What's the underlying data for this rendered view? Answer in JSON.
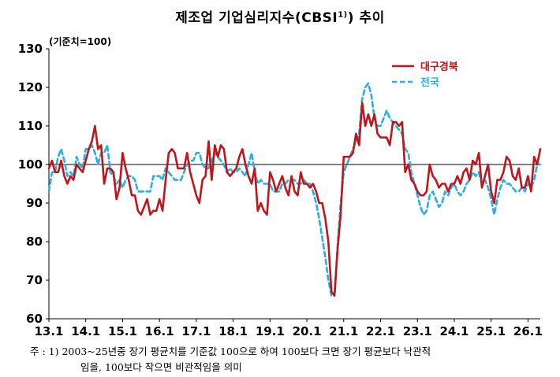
{
  "title": "제조업 기업심리지수(CBSI",
  "title_sup": "1)",
  "title_tail": ") 추이",
  "unit": "(기준치=100)",
  "footnote": {
    "line1": "주 : 1) 2003~25년중 장기 평균치를 기준값 100으로 하여 100보다 크면 장기 평균보다 낙관적",
    "line2": "임을, 100보다 작으면 비관적임을 의미"
  },
  "colors": {
    "daegu": "#c0151b",
    "national": "#2aaee6",
    "baseline": "#000000"
  },
  "chart_data": {
    "type": "line",
    "xlabel": "",
    "ylabel": "",
    "ylim": [
      60,
      130
    ],
    "yticks": [
      60,
      70,
      80,
      90,
      100,
      110,
      120,
      130
    ],
    "xtick_labels": [
      "13.1",
      "14.1",
      "15.1",
      "16.1",
      "17.1",
      "18.1",
      "19.1",
      "20.1",
      "21.1",
      "22.1",
      "23.1",
      "24.1",
      "25.1",
      "26.1"
    ],
    "x_start": "2013.1",
    "frequency": "monthly",
    "reference_line": 100,
    "legend_position": "top-right",
    "series": [
      {
        "name": "대구경북",
        "style": "solid",
        "values": [
          99,
          101,
          98,
          98,
          101,
          97,
          95,
          97,
          96,
          100,
          99,
          98,
          101,
          104,
          106,
          110,
          104,
          105,
          95,
          99,
          99,
          98,
          91,
          94,
          103,
          99,
          96,
          92,
          92,
          88,
          87,
          89,
          91,
          87,
          88,
          88,
          91,
          88,
          96,
          103,
          104,
          103,
          99,
          99,
          99,
          103,
          98,
          95,
          92,
          90,
          96,
          97,
          106,
          96,
          105,
          102,
          105,
          104,
          98,
          97,
          98,
          99,
          102,
          104,
          100,
          97,
          95,
          99,
          88,
          90,
          88,
          87,
          98,
          96,
          93,
          95,
          97,
          94,
          92,
          97,
          93,
          92,
          98,
          95,
          95,
          94,
          95,
          93,
          90,
          90,
          86,
          80,
          67,
          66,
          78,
          87,
          102,
          102,
          102,
          103,
          108,
          105,
          116,
          110,
          113,
          110,
          113,
          108,
          107,
          107,
          107,
          105,
          111,
          111,
          110,
          111,
          98,
          100,
          96,
          95,
          93,
          92,
          92,
          93,
          100,
          97,
          96,
          94,
          95,
          95,
          93,
          95,
          95,
          97,
          95,
          98,
          99,
          96,
          101,
          100,
          103,
          94,
          97,
          100,
          93,
          90,
          96,
          96,
          98,
          102,
          101,
          97,
          96,
          99,
          94,
          94,
          97,
          93,
          102,
          100,
          104
        ]
      },
      {
        "name": "전국",
        "style": "dashed",
        "values": [
          93,
          98,
          98,
          102,
          104,
          101,
          97,
          98,
          97,
          102,
          100,
          99,
          104,
          104,
          105,
          103,
          100,
          103,
          103,
          105,
          98,
          97,
          95,
          96,
          94,
          96,
          97,
          97,
          96,
          93,
          93,
          93,
          93,
          93,
          97,
          97,
          97,
          96,
          99,
          98,
          97,
          96,
          96,
          96,
          98,
          100,
          101,
          101,
          103,
          103,
          100,
          99,
          99,
          101,
          103,
          102,
          101,
          100,
          98,
          99,
          98,
          98,
          99,
          98,
          97,
          100,
          103,
          98,
          95,
          96,
          95,
          95,
          95,
          93,
          93,
          93,
          95,
          95,
          96,
          96,
          96,
          95,
          95,
          96,
          95,
          95,
          93,
          90,
          86,
          81,
          76,
          70,
          66,
          66,
          79,
          90,
          98,
          100,
          102,
          104,
          106,
          108,
          117,
          120,
          121,
          118,
          112,
          110,
          110,
          112,
          114,
          112,
          111,
          110,
          109,
          108,
          104,
          103,
          98,
          95,
          92,
          89,
          87,
          88,
          92,
          93,
          91,
          89,
          90,
          93,
          92,
          94,
          95,
          93,
          92,
          93,
          95,
          96,
          98,
          97,
          98,
          95,
          96,
          94,
          91,
          87,
          91,
          94,
          96,
          95,
          95,
          94,
          93,
          93,
          94,
          93,
          95,
          94,
          96,
          100,
          100
        ]
      }
    ]
  }
}
